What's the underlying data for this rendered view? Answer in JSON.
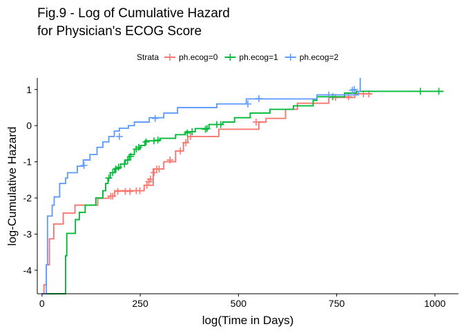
{
  "chart_data": {
    "type": "line",
    "step": true,
    "title_lines": [
      "Fig.9 - Log of Cumulative Hazard",
      "for Physician's ECOG Score"
    ],
    "xlabel": "log(Time in Days)",
    "ylabel": "log-Cumulative Hazard",
    "xlim": [
      -12,
      1060
    ],
    "ylim": [
      -4.65,
      1.32
    ],
    "x_ticks": [
      0,
      250,
      500,
      750,
      1000
    ],
    "y_ticks": [
      -4,
      -3,
      -2,
      -1,
      0,
      1
    ],
    "grid": false,
    "legend": {
      "title": "Strata",
      "position": "top"
    },
    "series": [
      {
        "name": "ph.ecog=0",
        "color": "#F8766D",
        "points": [
          [
            0,
            -4.7
          ],
          [
            5,
            -4.7
          ],
          [
            5,
            -4.4
          ],
          [
            11,
            -4.4
          ],
          [
            11,
            -3.85
          ],
          [
            19,
            -3.85
          ],
          [
            19,
            -3.13
          ],
          [
            30,
            -3.13
          ],
          [
            30,
            -2.72
          ],
          [
            54,
            -2.72
          ],
          [
            54,
            -2.42
          ],
          [
            84,
            -2.42
          ],
          [
            84,
            -2.2
          ],
          [
            142,
            -2.2
          ],
          [
            142,
            -2.01
          ],
          [
            170,
            -2.01
          ],
          [
            170,
            -1.95
          ],
          [
            185,
            -1.95
          ],
          [
            185,
            -1.8
          ],
          [
            260,
            -1.8
          ],
          [
            260,
            -1.65
          ],
          [
            283,
            -1.65
          ],
          [
            283,
            -1.2
          ],
          [
            310,
            -1.2
          ],
          [
            310,
            -1.0
          ],
          [
            340,
            -1.0
          ],
          [
            340,
            -0.7
          ],
          [
            360,
            -0.7
          ],
          [
            360,
            -0.47
          ],
          [
            371,
            -0.47
          ],
          [
            371,
            -0.3
          ],
          [
            450,
            -0.3
          ],
          [
            450,
            -0.1
          ],
          [
            552,
            -0.1
          ],
          [
            552,
            0.1
          ],
          [
            570,
            0.1
          ],
          [
            570,
            0.2
          ],
          [
            620,
            0.2
          ],
          [
            620,
            0.45
          ],
          [
            650,
            0.45
          ],
          [
            650,
            0.62
          ],
          [
            730,
            0.62
          ],
          [
            730,
            0.78
          ],
          [
            796,
            0.78
          ],
          [
            796,
            0.88
          ],
          [
            840,
            0.88
          ]
        ],
        "censored": [
          [
            175,
            -1.95
          ],
          [
            180,
            -1.95
          ],
          [
            193,
            -1.82
          ],
          [
            212,
            -1.82
          ],
          [
            224,
            -1.82
          ],
          [
            240,
            -1.8
          ],
          [
            249,
            -1.8
          ],
          [
            267,
            -1.65
          ],
          [
            272,
            -1.55
          ],
          [
            276,
            -1.48
          ],
          [
            285,
            -1.3
          ],
          [
            292,
            -1.2
          ],
          [
            298,
            -1.2
          ],
          [
            326,
            -0.95
          ],
          [
            352,
            -0.7
          ],
          [
            366,
            -0.47
          ],
          [
            378,
            -0.3
          ],
          [
            545,
            0.1
          ],
          [
            747,
            0.78
          ],
          [
            780,
            0.8
          ],
          [
            818,
            0.88
          ],
          [
            832,
            0.88
          ]
        ]
      },
      {
        "name": "ph.ecog=1",
        "color": "#00BA38",
        "points": [
          [
            0,
            -4.7
          ],
          [
            60,
            -4.7
          ],
          [
            60,
            -3.6
          ],
          [
            63,
            -3.6
          ],
          [
            63,
            -2.98
          ],
          [
            85,
            -2.98
          ],
          [
            85,
            -2.6
          ],
          [
            95,
            -2.6
          ],
          [
            95,
            -2.4
          ],
          [
            110,
            -2.4
          ],
          [
            110,
            -2.2
          ],
          [
            137,
            -2.2
          ],
          [
            137,
            -2.0
          ],
          [
            155,
            -2.0
          ],
          [
            155,
            -1.8
          ],
          [
            162,
            -1.8
          ],
          [
            162,
            -1.6
          ],
          [
            168,
            -1.6
          ],
          [
            168,
            -1.45
          ],
          [
            174,
            -1.45
          ],
          [
            174,
            -1.3
          ],
          [
            185,
            -1.3
          ],
          [
            185,
            -1.18
          ],
          [
            200,
            -1.18
          ],
          [
            200,
            -1.06
          ],
          [
            212,
            -1.06
          ],
          [
            212,
            -0.95
          ],
          [
            222,
            -0.95
          ],
          [
            222,
            -0.8
          ],
          [
            235,
            -0.8
          ],
          [
            235,
            -0.65
          ],
          [
            250,
            -0.65
          ],
          [
            250,
            -0.55
          ],
          [
            262,
            -0.55
          ],
          [
            262,
            -0.42
          ],
          [
            300,
            -0.42
          ],
          [
            300,
            -0.35
          ],
          [
            340,
            -0.35
          ],
          [
            340,
            -0.25
          ],
          [
            365,
            -0.25
          ],
          [
            365,
            -0.17
          ],
          [
            390,
            -0.17
          ],
          [
            390,
            -0.08
          ],
          [
            425,
            -0.08
          ],
          [
            425,
            0.03
          ],
          [
            460,
            0.03
          ],
          [
            460,
            0.1
          ],
          [
            490,
            0.1
          ],
          [
            490,
            0.22
          ],
          [
            530,
            0.22
          ],
          [
            530,
            0.35
          ],
          [
            580,
            0.35
          ],
          [
            580,
            0.45
          ],
          [
            640,
            0.45
          ],
          [
            640,
            0.55
          ],
          [
            690,
            0.55
          ],
          [
            690,
            0.7
          ],
          [
            700,
            0.7
          ],
          [
            700,
            0.8
          ],
          [
            770,
            0.8
          ],
          [
            770,
            0.9
          ],
          [
            800,
            0.9
          ],
          [
            800,
            0.95
          ],
          [
            1022,
            0.95
          ]
        ],
        "censored": [
          [
            170,
            -1.45
          ],
          [
            180,
            -1.3
          ],
          [
            188,
            -1.2
          ],
          [
            195,
            -1.15
          ],
          [
            210,
            -1.06
          ],
          [
            218,
            -0.95
          ],
          [
            226,
            -0.85
          ],
          [
            240,
            -0.65
          ],
          [
            246,
            -0.6
          ],
          [
            265,
            -0.45
          ],
          [
            285,
            -0.42
          ],
          [
            295,
            -0.4
          ],
          [
            370,
            -0.2
          ],
          [
            382,
            -0.17
          ],
          [
            416,
            -0.1
          ],
          [
            420,
            -0.08
          ],
          [
            445,
            0.03
          ],
          [
            455,
            0.03
          ],
          [
            740,
            0.8
          ],
          [
            963,
            0.95
          ],
          [
            1010,
            0.95
          ]
        ]
      },
      {
        "name": "ph.ecog=2",
        "color": "#619CFF",
        "points": [
          [
            0,
            -4.7
          ],
          [
            11,
            -4.7
          ],
          [
            11,
            -3.85
          ],
          [
            14,
            -3.85
          ],
          [
            14,
            -2.5
          ],
          [
            26,
            -2.5
          ],
          [
            26,
            -2.2
          ],
          [
            31,
            -2.2
          ],
          [
            31,
            -1.97
          ],
          [
            45,
            -1.97
          ],
          [
            45,
            -1.6
          ],
          [
            60,
            -1.6
          ],
          [
            60,
            -1.45
          ],
          [
            65,
            -1.45
          ],
          [
            65,
            -1.3
          ],
          [
            90,
            -1.3
          ],
          [
            90,
            -1.12
          ],
          [
            105,
            -1.12
          ],
          [
            105,
            -0.95
          ],
          [
            122,
            -0.95
          ],
          [
            122,
            -0.8
          ],
          [
            140,
            -0.8
          ],
          [
            140,
            -0.6
          ],
          [
            155,
            -0.6
          ],
          [
            155,
            -0.45
          ],
          [
            170,
            -0.45
          ],
          [
            170,
            -0.3
          ],
          [
            184,
            -0.3
          ],
          [
            184,
            -0.15
          ],
          [
            197,
            -0.15
          ],
          [
            197,
            -0.07
          ],
          [
            220,
            -0.07
          ],
          [
            220,
            0.0
          ],
          [
            235,
            0.0
          ],
          [
            235,
            0.1
          ],
          [
            273,
            0.1
          ],
          [
            273,
            0.22
          ],
          [
            310,
            0.22
          ],
          [
            310,
            0.35
          ],
          [
            345,
            0.35
          ],
          [
            345,
            0.5
          ],
          [
            445,
            0.5
          ],
          [
            445,
            0.6
          ],
          [
            520,
            0.6
          ],
          [
            520,
            0.74
          ],
          [
            700,
            0.74
          ],
          [
            700,
            0.85
          ],
          [
            805,
            0.85
          ],
          [
            805,
            0.95
          ],
          [
            810,
            0.95
          ],
          [
            810,
            1.32
          ]
        ],
        "censored": [
          [
            107,
            -1.1
          ],
          [
            197,
            -0.3
          ],
          [
            288,
            0.2
          ],
          [
            524,
            0.6
          ],
          [
            552,
            0.75
          ],
          [
            730,
            0.85
          ],
          [
            790,
            0.98
          ],
          [
            795,
            1.0
          ]
        ]
      }
    ]
  }
}
